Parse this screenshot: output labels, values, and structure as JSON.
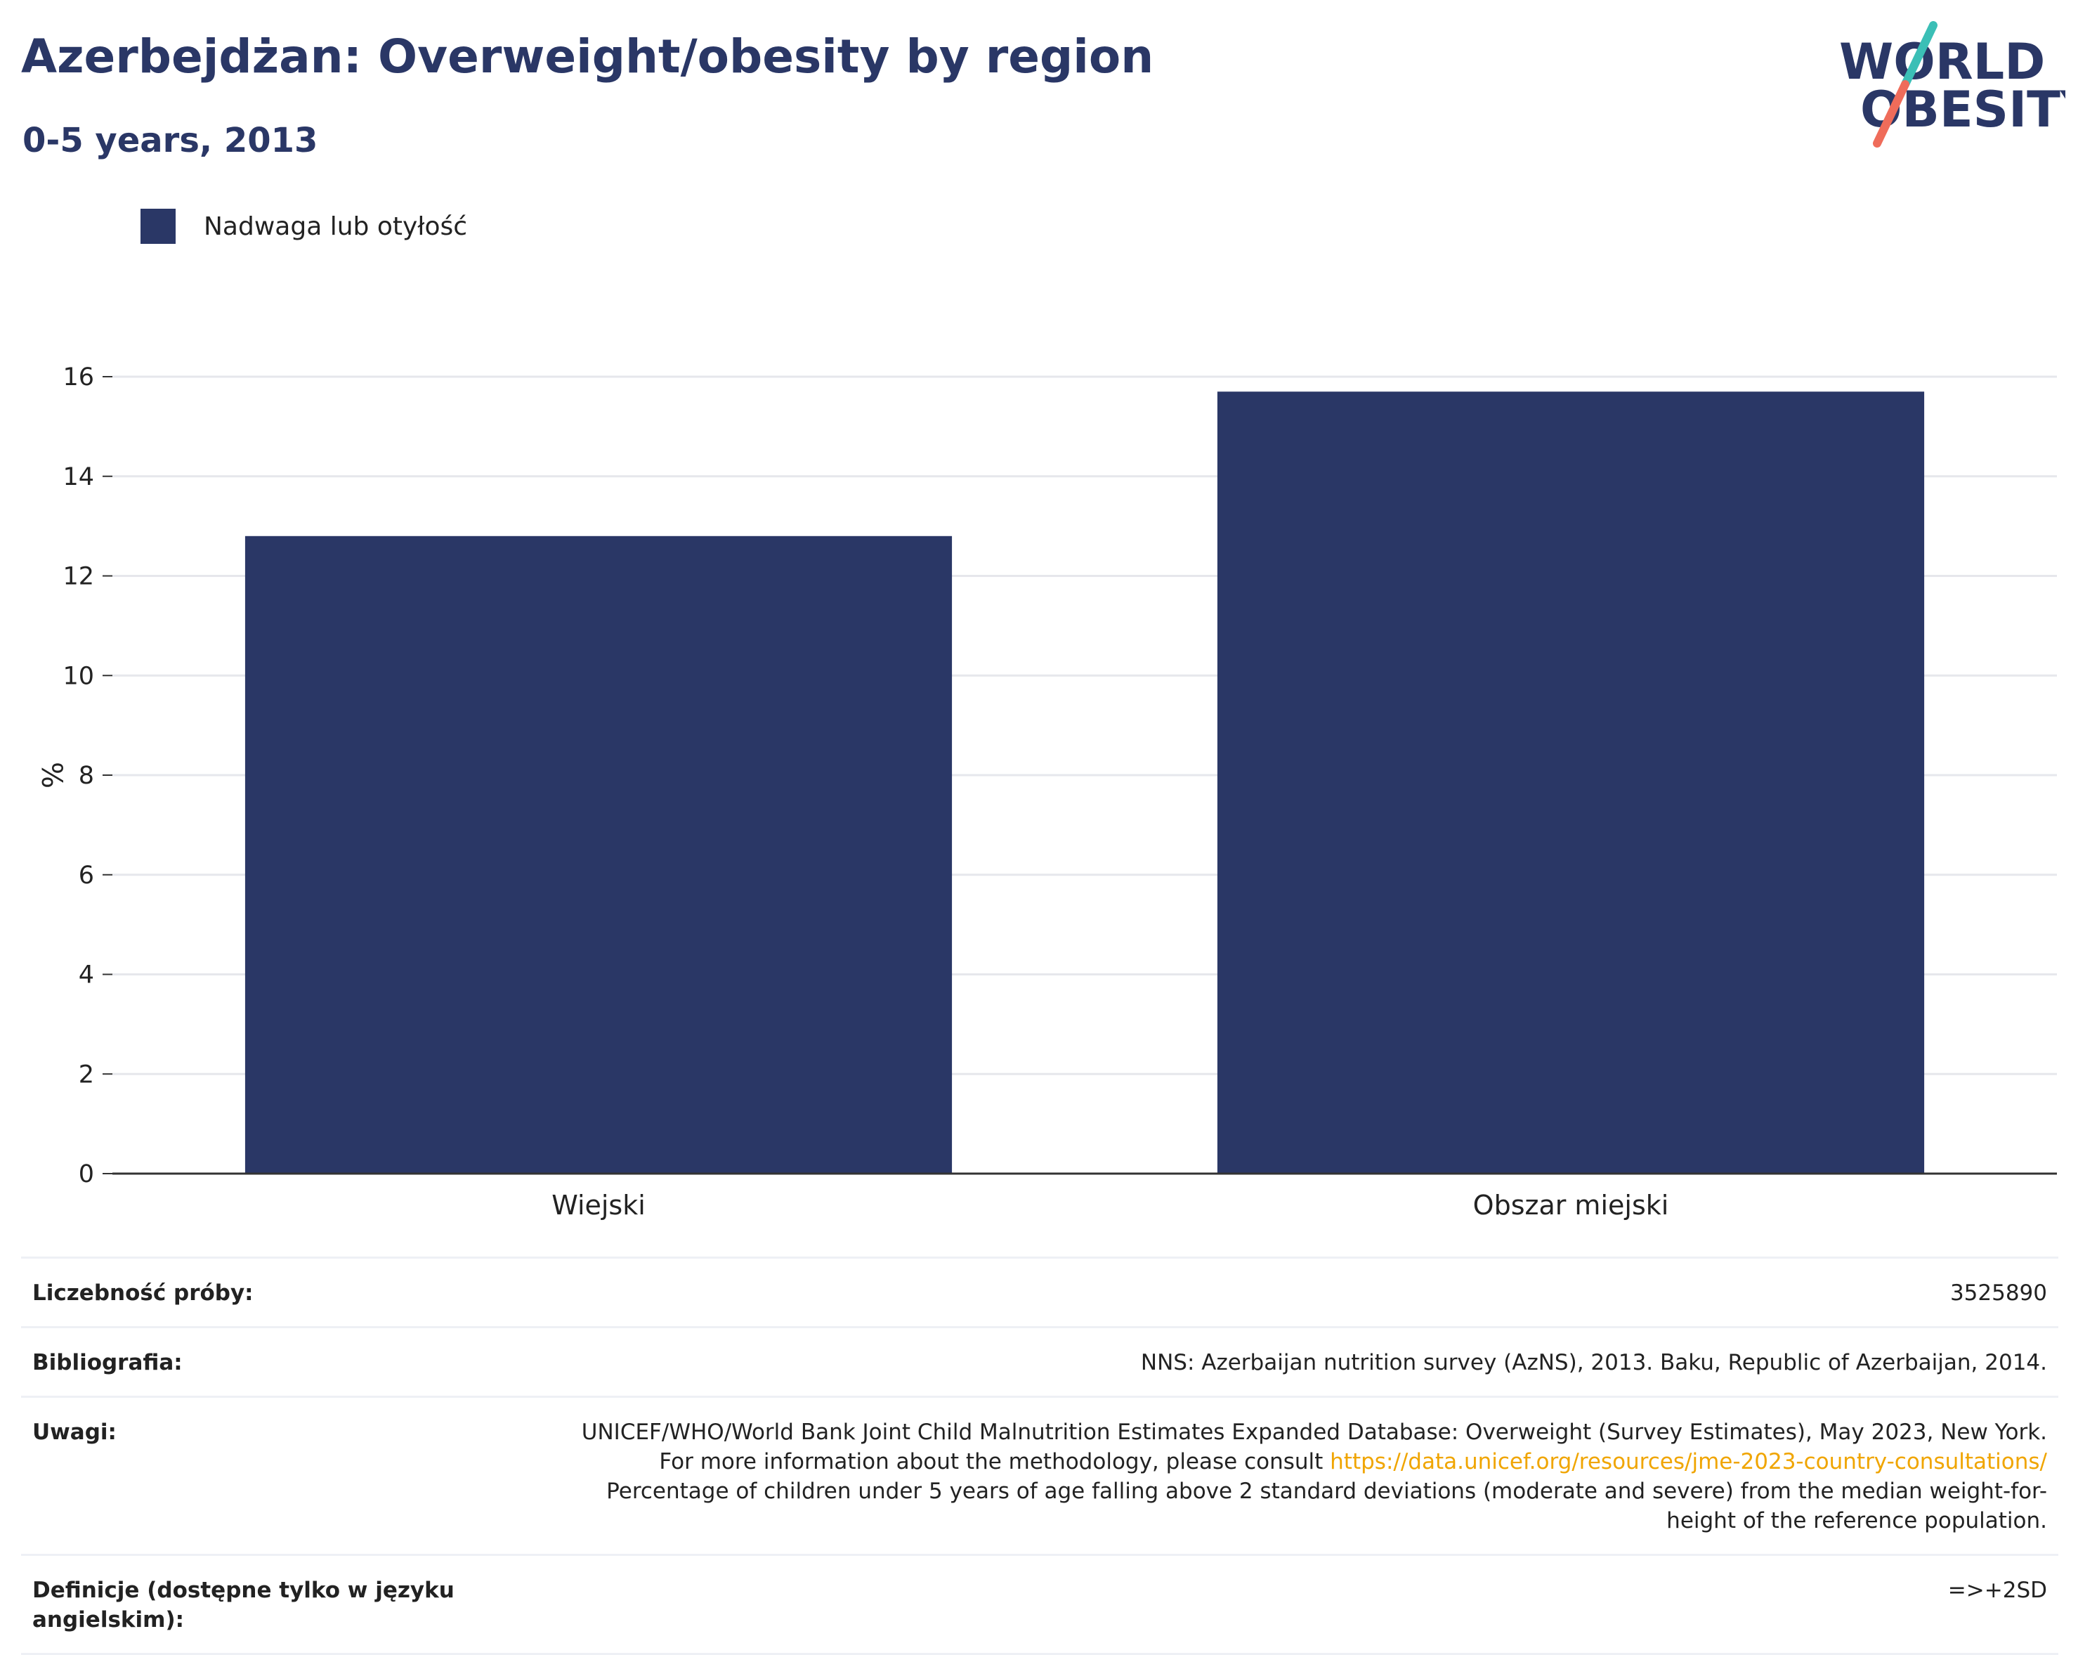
{
  "header": {
    "title": "Azerbejdżan: Overweight/obesity by region",
    "subtitle": "0-5 years, 2013"
  },
  "logo": {
    "line1": "WORLD",
    "line2": "OBESITY",
    "colors": {
      "text": "#2a3766",
      "slash_top": "#3bbfb6",
      "slash_bottom": "#ef6c5a"
    }
  },
  "colors": {
    "bar": "#2a3766",
    "grid": "#e6e7ec",
    "axis": "#333333",
    "link": "#f0a500"
  },
  "chart_data": {
    "type": "bar",
    "categories": [
      "Wiejski",
      "Obszar miejski"
    ],
    "series": [
      {
        "name": "Nadwaga lub otyłość",
        "values": [
          12.8,
          15.7
        ]
      }
    ],
    "ylabel": "%",
    "xlabel": "",
    "ylim": [
      0,
      16
    ],
    "yticks": [
      0,
      2,
      4,
      6,
      8,
      10,
      12,
      14,
      16
    ],
    "grid": true,
    "legend_placement": "top-left"
  },
  "info": {
    "sample_label": "Liczebność próby:",
    "sample_value": "3525890",
    "bib_label": "Bibliografia:",
    "bib_value": "NNS: Azerbaijan nutrition survey (AzNS), 2013. Baku, Republic of Azerbaijan, 2014.",
    "notes_label": "Uwagi:",
    "notes_line1": "UNICEF/WHO/World Bank Joint Child Malnutrition Estimates Expanded Database: Overweight (Survey Estimates), May 2023, New York. For more information about the methodology, please consult ",
    "notes_link": "https://data.unicef.org/resources/jme-2023-country-consultations/",
    "notes_line2": "Percentage of children under 5 years of age falling above 2 standard deviations (moderate and severe) from the median weight-for-height of the reference population.",
    "def_label": "Definicje (dostępne tylko w języku angielskim):",
    "def_value": "=>+2SD"
  }
}
